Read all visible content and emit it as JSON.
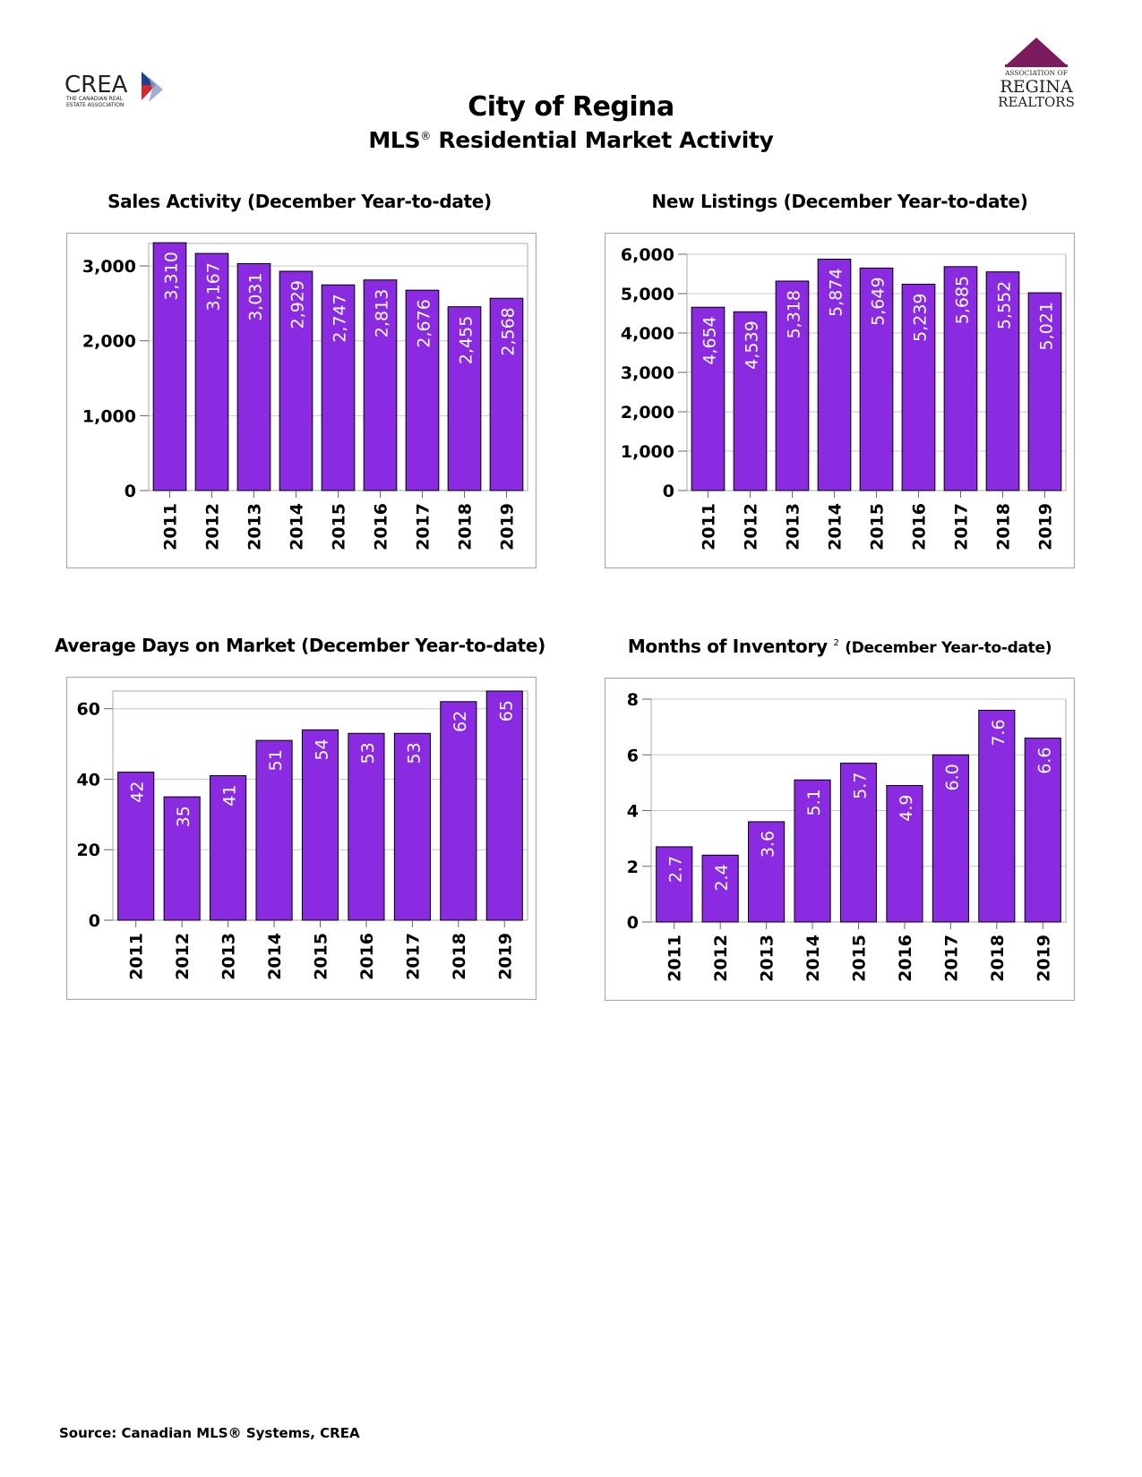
{
  "header": {
    "title": "City of Regina",
    "subtitle_prefix": "MLS",
    "subtitle_reg": "®",
    "subtitle_suffix": " Residential Market Activity"
  },
  "logos": {
    "crea": {
      "name": "CREA",
      "tagline_1": "THE CANADIAN REAL",
      "tagline_2": "ESTATE ASSOCIATION"
    },
    "regina": {
      "line_1": "ASSOCIATION OF",
      "line_2": "REGINA",
      "line_3": "REALTORS"
    }
  },
  "colors": {
    "bar": "#8a2be2",
    "bar_edge": "#000000",
    "grid": "#c8c8c8",
    "frame": "#a8a8a8",
    "crea_blue": "#1f3f8f",
    "crea_red": "#d8262e",
    "regina_purple": "#7b1a5c"
  },
  "chart_data": [
    {
      "type": "bar",
      "title": "Sales Activity (December Year-to-date)",
      "categories": [
        "2011",
        "2012",
        "2013",
        "2014",
        "2015",
        "2016",
        "2017",
        "2018",
        "2019"
      ],
      "values": [
        3310,
        3167,
        3031,
        2929,
        2747,
        2813,
        2676,
        2455,
        2568
      ],
      "labels": [
        "3,310",
        "3,167",
        "3,031",
        "2,929",
        "2,747",
        "2,813",
        "2,676",
        "2,455",
        "2,568"
      ],
      "ylim": [
        0,
        3300
      ],
      "yticks": [
        0,
        1000,
        2000,
        3000
      ],
      "ytick_labels": [
        "0",
        "1,000",
        "2,000",
        "3,000"
      ],
      "grid": true
    },
    {
      "type": "bar",
      "title": "New Listings (December Year-to-date)",
      "categories": [
        "2011",
        "2012",
        "2013",
        "2014",
        "2015",
        "2016",
        "2017",
        "2018",
        "2019"
      ],
      "values": [
        4654,
        4539,
        5318,
        5874,
        5649,
        5239,
        5685,
        5552,
        5021
      ],
      "labels": [
        "4,654",
        "4,539",
        "5,318",
        "5,874",
        "5,649",
        "5,239",
        "5,685",
        "5,552",
        "5,021"
      ],
      "ylim": [
        0,
        6000
      ],
      "yticks": [
        0,
        1000,
        2000,
        3000,
        4000,
        5000,
        6000
      ],
      "ytick_labels": [
        "0",
        "1,000",
        "2,000",
        "3,000",
        "4,000",
        "5,000",
        "6,000"
      ],
      "grid": true
    },
    {
      "type": "bar",
      "title": "Average Days on Market (December Year-to-date)",
      "categories": [
        "2011",
        "2012",
        "2013",
        "2014",
        "2015",
        "2016",
        "2017",
        "2018",
        "2019"
      ],
      "values": [
        42,
        35,
        41,
        51,
        54,
        53,
        53,
        62,
        65
      ],
      "labels": [
        "42",
        "35",
        "41",
        "51",
        "54",
        "53",
        "53",
        "62",
        "65"
      ],
      "ylim": [
        0,
        65
      ],
      "yticks": [
        0,
        20,
        40,
        60
      ],
      "ytick_labels": [
        "0",
        "20",
        "40",
        "60"
      ],
      "grid": true
    },
    {
      "type": "bar",
      "title": "Months of Inventory",
      "title_sup": "2",
      "title_suffix": "(December Year-to-date)",
      "categories": [
        "2011",
        "2012",
        "2013",
        "2014",
        "2015",
        "2016",
        "2017",
        "2018",
        "2019"
      ],
      "values": [
        2.7,
        2.4,
        3.6,
        5.1,
        5.7,
        4.9,
        6.0,
        7.6,
        6.6
      ],
      "labels": [
        "2.7",
        "2.4",
        "3.6",
        "5.1",
        "5.7",
        "4.9",
        "6.0",
        "7.6",
        "6.6"
      ],
      "ylim": [
        0,
        8
      ],
      "yticks": [
        0,
        2,
        4,
        6,
        8
      ],
      "ytick_labels": [
        "0",
        "2",
        "4",
        "6",
        "8"
      ],
      "grid": true
    }
  ],
  "footer": {
    "source": "Source: Canadian MLS® Systems, CREA"
  }
}
